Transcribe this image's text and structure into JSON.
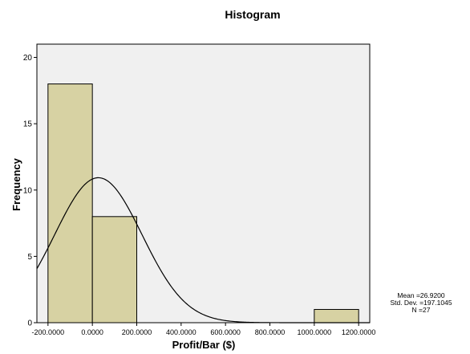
{
  "chart_data": {
    "type": "bar",
    "title": "Histogram",
    "xlabel": "Profit/Bar ($)",
    "ylabel": "Frequency",
    "xlim": [
      -250,
      1250
    ],
    "ylim": [
      0,
      21
    ],
    "x_ticks": [
      -200,
      0,
      200,
      400,
      600,
      800,
      1000,
      1200
    ],
    "x_tick_labels": [
      "-200.0000",
      "0.0000",
      "200.0000",
      "400.0000",
      "600.0000",
      "800.0000",
      "1000.0000",
      "1200.0000"
    ],
    "y_ticks": [
      0,
      5,
      10,
      15,
      20
    ],
    "y_tick_labels": [
      "0",
      "5",
      "10",
      "15",
      "20"
    ],
    "bins": [
      {
        "from": -200,
        "to": 0,
        "count": 18
      },
      {
        "from": 0,
        "to": 200,
        "count": 8
      },
      {
        "from": 1000,
        "to": 1200,
        "count": 1
      }
    ],
    "normal_curve": {
      "mean": 26.92,
      "std_dev": 197.1045,
      "n": 27,
      "bin_width": 200
    },
    "bar_color": "#d7d2a3",
    "plot_background": "#f0f0f0",
    "grid": false,
    "stats_box": {
      "mean": "Mean =26.9200",
      "std_dev": "Std. Dev. =197.1045",
      "n": "N =27"
    }
  }
}
